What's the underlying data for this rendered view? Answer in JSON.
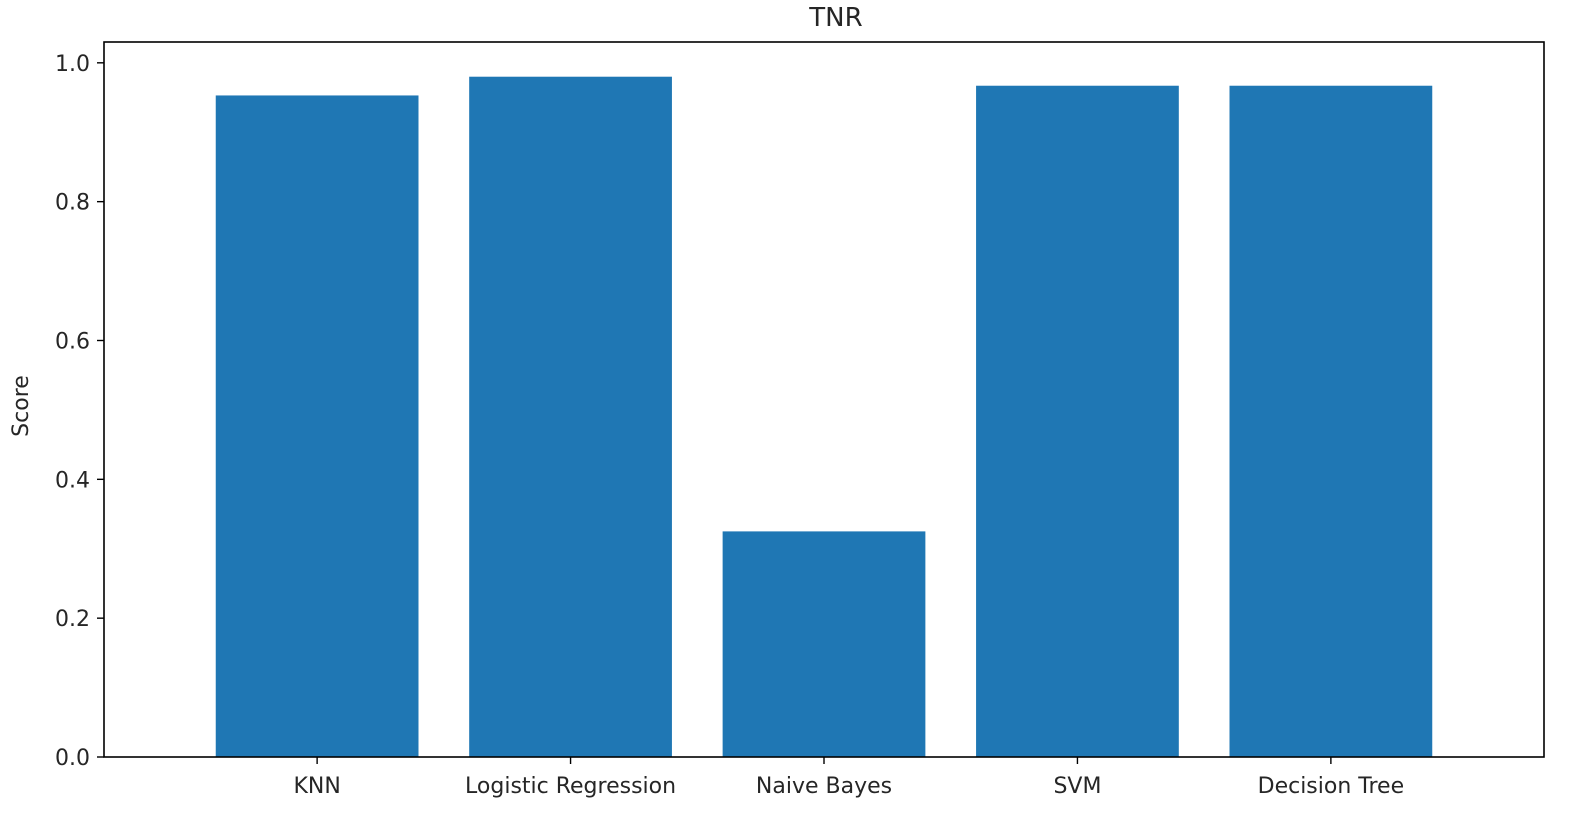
{
  "chart_data": {
    "type": "bar",
    "title": "TNR",
    "xlabel": "",
    "ylabel": "Score",
    "categories": [
      "KNN",
      "Logistic Regression",
      "Naive Bayes",
      "SVM",
      "Decision Tree"
    ],
    "values": [
      0.953,
      0.98,
      0.325,
      0.967,
      0.967
    ],
    "ylim": [
      0,
      1.03
    ],
    "yticks": [
      0.0,
      0.2,
      0.4,
      0.6,
      0.8,
      1.0
    ],
    "ytick_labels": [
      "0.0",
      "0.2",
      "0.4",
      "0.6",
      "0.8",
      "1.0"
    ],
    "grid": false,
    "legend": "none",
    "bar_color": "#1f77b4"
  }
}
